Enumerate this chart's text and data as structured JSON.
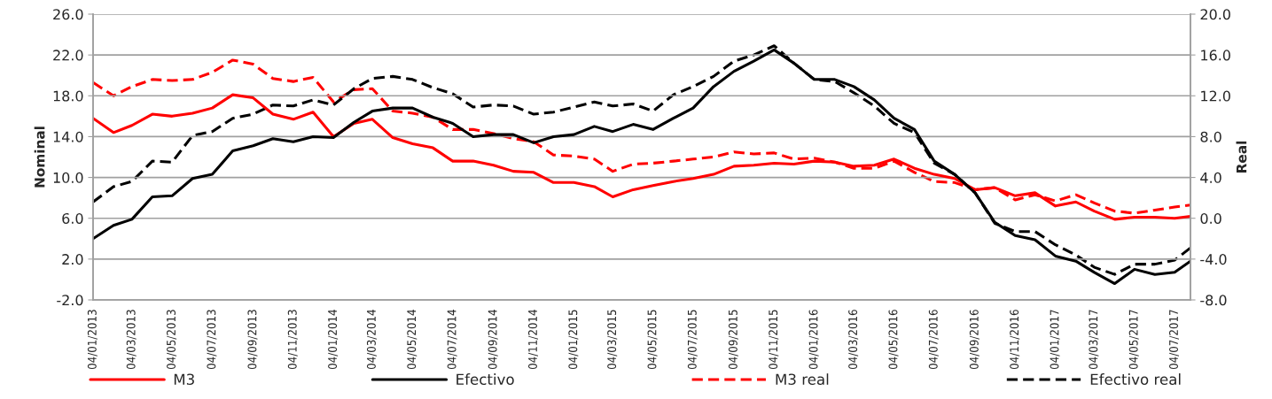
{
  "chart_data": {
    "type": "line",
    "ylabel": "Nominal",
    "y2label": "Real",
    "x": [
      "2013-01-04",
      "2013-02-04",
      "2013-03-04",
      "2013-04-04",
      "2013-05-04",
      "2013-06-04",
      "2013-07-04",
      "2013-08-04",
      "2013-09-04",
      "2013-10-04",
      "2013-11-04",
      "2013-12-04",
      "2014-01-04",
      "2014-02-04",
      "2014-03-04",
      "2014-04-04",
      "2014-05-04",
      "2014-06-04",
      "2014-07-04",
      "2014-08-04",
      "2014-09-04",
      "2014-10-04",
      "2014-11-04",
      "2014-12-04",
      "2015-01-04",
      "2015-02-04",
      "2015-03-04",
      "2015-04-04",
      "2015-05-04",
      "2015-06-04",
      "2015-07-04",
      "2015-08-04",
      "2015-09-04",
      "2015-10-04",
      "2015-11-04",
      "2015-12-04",
      "2016-01-04",
      "2016-02-04",
      "2016-03-04",
      "2016-04-04",
      "2016-05-04",
      "2016-06-04",
      "2016-07-04",
      "2016-08-04",
      "2016-09-04",
      "2016-10-04",
      "2016-11-04",
      "2016-12-04",
      "2017-01-04",
      "2017-02-04",
      "2017-03-04",
      "2017-04-04",
      "2017-05-04",
      "2017-06-04",
      "2017-07-04",
      "2017-07-28"
    ],
    "series": [
      {
        "name": "M3",
        "color": "#ff0000",
        "line_style": "solid",
        "values": [
          15.8,
          14.4,
          15.1,
          16.2,
          16.0,
          16.3,
          16.8,
          18.1,
          17.8,
          16.2,
          15.7,
          16.4,
          14.0,
          15.3,
          15.7,
          13.9,
          13.3,
          12.9,
          11.6,
          11.6,
          11.2,
          10.6,
          10.5,
          9.5,
          9.5,
          9.1,
          8.1,
          8.8,
          9.2,
          9.6,
          9.9,
          10.3,
          11.1,
          11.2,
          11.4,
          11.3,
          11.6,
          11.5,
          11.1,
          11.2,
          11.8,
          10.9,
          10.3,
          9.9,
          8.8,
          9.0,
          8.2,
          8.5,
          7.2,
          7.6,
          6.7,
          5.9,
          6.1,
          6.1,
          6.0,
          6.2
        ]
      },
      {
        "name": "Efectivo",
        "color": "#000000",
        "line_style": "solid",
        "values": [
          4.0,
          5.3,
          5.9,
          8.1,
          8.2,
          9.9,
          10.3,
          12.6,
          13.1,
          13.8,
          13.5,
          14.0,
          13.9,
          15.4,
          16.5,
          16.8,
          16.8,
          15.9,
          15.3,
          14.0,
          14.2,
          14.2,
          13.4,
          14.0,
          14.2,
          15.0,
          14.5,
          15.2,
          14.7,
          15.8,
          16.8,
          18.9,
          20.4,
          21.4,
          22.5,
          21.2,
          19.6,
          19.6,
          18.9,
          17.6,
          15.8,
          14.7,
          11.6,
          10.3,
          8.5,
          5.6,
          4.3,
          3.9,
          2.3,
          1.8,
          0.7,
          -0.4,
          1.0,
          0.5,
          0.7,
          1.8
        ]
      },
      {
        "name": "M3 real",
        "color": "#ff0000",
        "line_style": "dashed",
        "axis": "y2",
        "values": [
          13.3,
          12.0,
          12.9,
          13.6,
          13.5,
          13.6,
          14.3,
          15.5,
          15.1,
          13.7,
          13.4,
          13.8,
          11.4,
          12.6,
          12.7,
          10.5,
          10.3,
          9.9,
          8.7,
          8.7,
          8.3,
          7.8,
          7.5,
          6.2,
          6.1,
          5.8,
          4.6,
          5.3,
          5.4,
          5.6,
          5.8,
          6.0,
          6.5,
          6.3,
          6.4,
          5.8,
          5.9,
          5.5,
          4.9,
          4.9,
          5.6,
          4.5,
          3.6,
          3.5,
          2.8,
          3.0,
          1.8,
          2.3,
          1.7,
          2.3,
          1.5,
          0.7,
          0.5,
          0.8,
          1.1,
          1.3
        ]
      },
      {
        "name": "Efectivo real",
        "color": "#000000",
        "line_style": "dashed",
        "axis": "y2",
        "values": [
          1.6,
          3.1,
          3.6,
          5.6,
          5.5,
          8.1,
          8.5,
          9.8,
          10.2,
          11.1,
          11.0,
          11.6,
          11.1,
          12.7,
          13.7,
          13.9,
          13.6,
          12.8,
          12.2,
          10.9,
          11.1,
          11.0,
          10.2,
          10.4,
          10.9,
          11.4,
          11.0,
          11.2,
          10.5,
          12.1,
          12.9,
          13.9,
          15.4,
          16.0,
          16.9,
          15.2,
          13.6,
          13.4,
          12.3,
          11.0,
          9.3,
          8.4,
          5.4,
          4.3,
          2.5,
          -0.5,
          -1.3,
          -1.3,
          -2.6,
          -3.6,
          -4.8,
          -5.5,
          -4.5,
          -4.5,
          -4.1,
          -2.9
        ]
      }
    ],
    "xlim": [
      "2013-01-04",
      "2017-07-28"
    ],
    "xticks": [
      {
        "value": "2013-01-04",
        "label": "04/01/2013"
      },
      {
        "value": "2013-03-04",
        "label": "04/03/2013"
      },
      {
        "value": "2013-05-04",
        "label": "04/05/2013"
      },
      {
        "value": "2013-07-04",
        "label": "04/07/2013"
      },
      {
        "value": "2013-09-04",
        "label": "04/09/2013"
      },
      {
        "value": "2013-11-04",
        "label": "04/11/2013"
      },
      {
        "value": "2014-01-04",
        "label": "04/01/2014"
      },
      {
        "value": "2014-03-04",
        "label": "04/03/2014"
      },
      {
        "value": "2014-05-04",
        "label": "04/05/2014"
      },
      {
        "value": "2014-07-04",
        "label": "04/07/2014"
      },
      {
        "value": "2014-09-04",
        "label": "04/09/2014"
      },
      {
        "value": "2014-11-04",
        "label": "04/11/2014"
      },
      {
        "value": "2015-01-04",
        "label": "04/01/2015"
      },
      {
        "value": "2015-03-04",
        "label": "04/03/2015"
      },
      {
        "value": "2015-05-04",
        "label": "04/05/2015"
      },
      {
        "value": "2015-07-04",
        "label": "04/07/2015"
      },
      {
        "value": "2015-09-04",
        "label": "04/09/2015"
      },
      {
        "value": "2015-11-04",
        "label": "04/11/2015"
      },
      {
        "value": "2016-01-04",
        "label": "04/01/2016"
      },
      {
        "value": "2016-03-04",
        "label": "04/03/2016"
      },
      {
        "value": "2016-05-04",
        "label": "04/05/2016"
      },
      {
        "value": "2016-07-04",
        "label": "04/07/2016"
      },
      {
        "value": "2016-09-04",
        "label": "04/09/2016"
      },
      {
        "value": "2016-11-04",
        "label": "04/11/2016"
      },
      {
        "value": "2017-01-04",
        "label": "04/01/2017"
      },
      {
        "value": "2017-03-04",
        "label": "04/03/2017"
      },
      {
        "value": "2017-05-04",
        "label": "04/05/2017"
      },
      {
        "value": "2017-07-04",
        "label": "04/07/2017"
      }
    ],
    "ylim": [
      -2,
      26
    ],
    "yticks": [
      {
        "value": -2,
        "label": "-2.0"
      },
      {
        "value": 2,
        "label": "2.0"
      },
      {
        "value": 6,
        "label": "6.0"
      },
      {
        "value": 10,
        "label": "10.0"
      },
      {
        "value": 14,
        "label": "14.0"
      },
      {
        "value": 18,
        "label": "18.0"
      },
      {
        "value": 22,
        "label": "22.0"
      },
      {
        "value": 26,
        "label": "26.0"
      }
    ],
    "y2lim": [
      -8,
      20
    ],
    "y2ticks": [
      {
        "value": -8,
        "label": "-8.0"
      },
      {
        "value": -4,
        "label": "-4.0"
      },
      {
        "value": 0,
        "label": "0.0"
      },
      {
        "value": 4,
        "label": "4.0"
      },
      {
        "value": 8,
        "label": "8.0"
      },
      {
        "value": 12,
        "label": "12.0"
      },
      {
        "value": 16,
        "label": "16.0"
      },
      {
        "value": 20,
        "label": "20.0"
      }
    ],
    "grid": "y",
    "legend": "bottom"
  }
}
